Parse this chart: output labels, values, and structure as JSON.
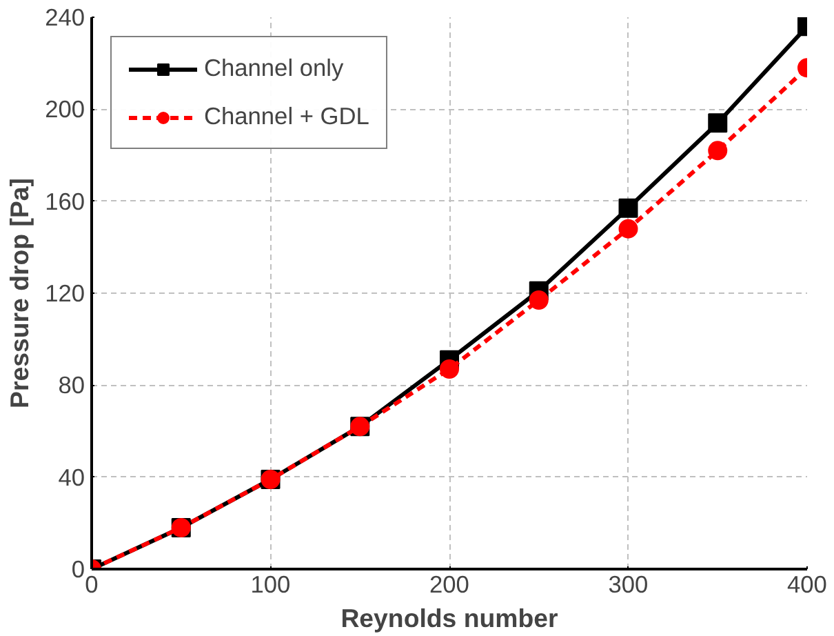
{
  "chart_data": {
    "type": "line",
    "xlabel": "Reynolds number",
    "ylabel": "Pressure drop [Pa]",
    "x": [
      0,
      50,
      100,
      150,
      200,
      250,
      300,
      350,
      400
    ],
    "series": [
      {
        "name": "Channel only",
        "color": "#000000",
        "values": [
          0,
          18,
          39,
          62,
          91,
          121,
          157,
          194,
          236
        ],
        "marker": "square",
        "line_style": "solid"
      },
      {
        "name": "Channel + GDL",
        "color": "#ff0000",
        "values": [
          0,
          18,
          39,
          62,
          87,
          117,
          148,
          182,
          218
        ],
        "marker": "circle",
        "line_style": "dashed"
      }
    ],
    "xlim": [
      0,
      400
    ],
    "ylim": [
      0,
      240
    ],
    "xticks": [
      0,
      100,
      200,
      300,
      400
    ],
    "yticks": [
      0,
      40,
      80,
      120,
      160,
      200,
      240
    ],
    "grid": true,
    "legend": "top left"
  }
}
